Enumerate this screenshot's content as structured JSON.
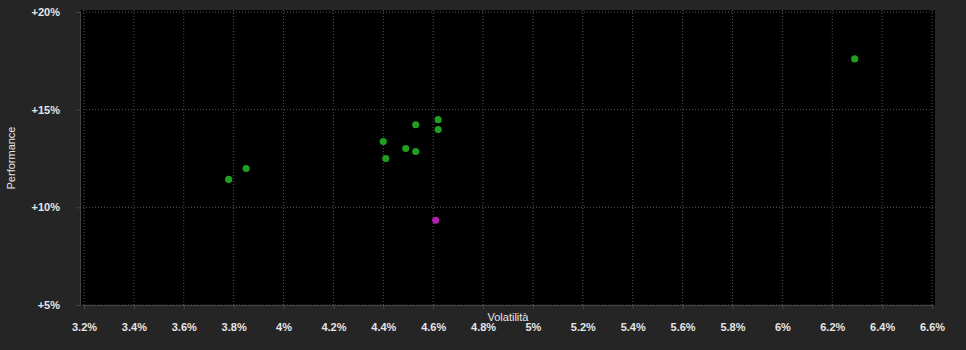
{
  "chart_data": {
    "type": "scatter",
    "x_label": "Volatilità",
    "y_label": "Performance",
    "xlim": [
      3.2,
      6.6
    ],
    "ylim": [
      5,
      20
    ],
    "xticks": [
      {
        "value": 3.2,
        "label": "3.2%"
      },
      {
        "value": 3.4,
        "label": "3.4%"
      },
      {
        "value": 3.6,
        "label": "3.6%"
      },
      {
        "value": 3.8,
        "label": "3.8%"
      },
      {
        "value": 4,
        "label": "4%"
      },
      {
        "value": 4.2,
        "label": "4.2%"
      },
      {
        "value": 4.4,
        "label": "4.4%"
      },
      {
        "value": 4.6,
        "label": "4.6%"
      },
      {
        "value": 4.8,
        "label": "4.8%"
      },
      {
        "value": 5,
        "label": "5%"
      },
      {
        "value": 5.2,
        "label": "5.2%"
      },
      {
        "value": 5.4,
        "label": "5.4%"
      },
      {
        "value": 5.6,
        "label": "5.6%"
      },
      {
        "value": 5.8,
        "label": "5.8%"
      },
      {
        "value": 6,
        "label": "6%"
      },
      {
        "value": 6.2,
        "label": "6.2%"
      },
      {
        "value": 6.4,
        "label": "6.4%"
      },
      {
        "value": 6.6,
        "label": "6.6%"
      }
    ],
    "yticks": [
      {
        "value": 5,
        "label": "+5%"
      },
      {
        "value": 10,
        "label": "+10%"
      },
      {
        "value": 15,
        "label": "+15%"
      },
      {
        "value": 20,
        "label": "+20%"
      }
    ],
    "grid": true,
    "series": [
      {
        "color": "#1f9e1f",
        "marker": "circle",
        "x": [
          3.78,
          3.85,
          4.4,
          4.41,
          4.49,
          4.53,
          4.53,
          4.62,
          4.62,
          6.29
        ],
        "values": [
          11.43,
          11.99,
          13.37,
          12.5,
          13.01,
          12.86,
          14.23,
          14.49,
          13.98,
          17.6
        ]
      },
      {
        "color": "#b01fb0",
        "marker": "circle",
        "x": [
          4.61
        ],
        "values": [
          9.34
        ]
      }
    ]
  }
}
